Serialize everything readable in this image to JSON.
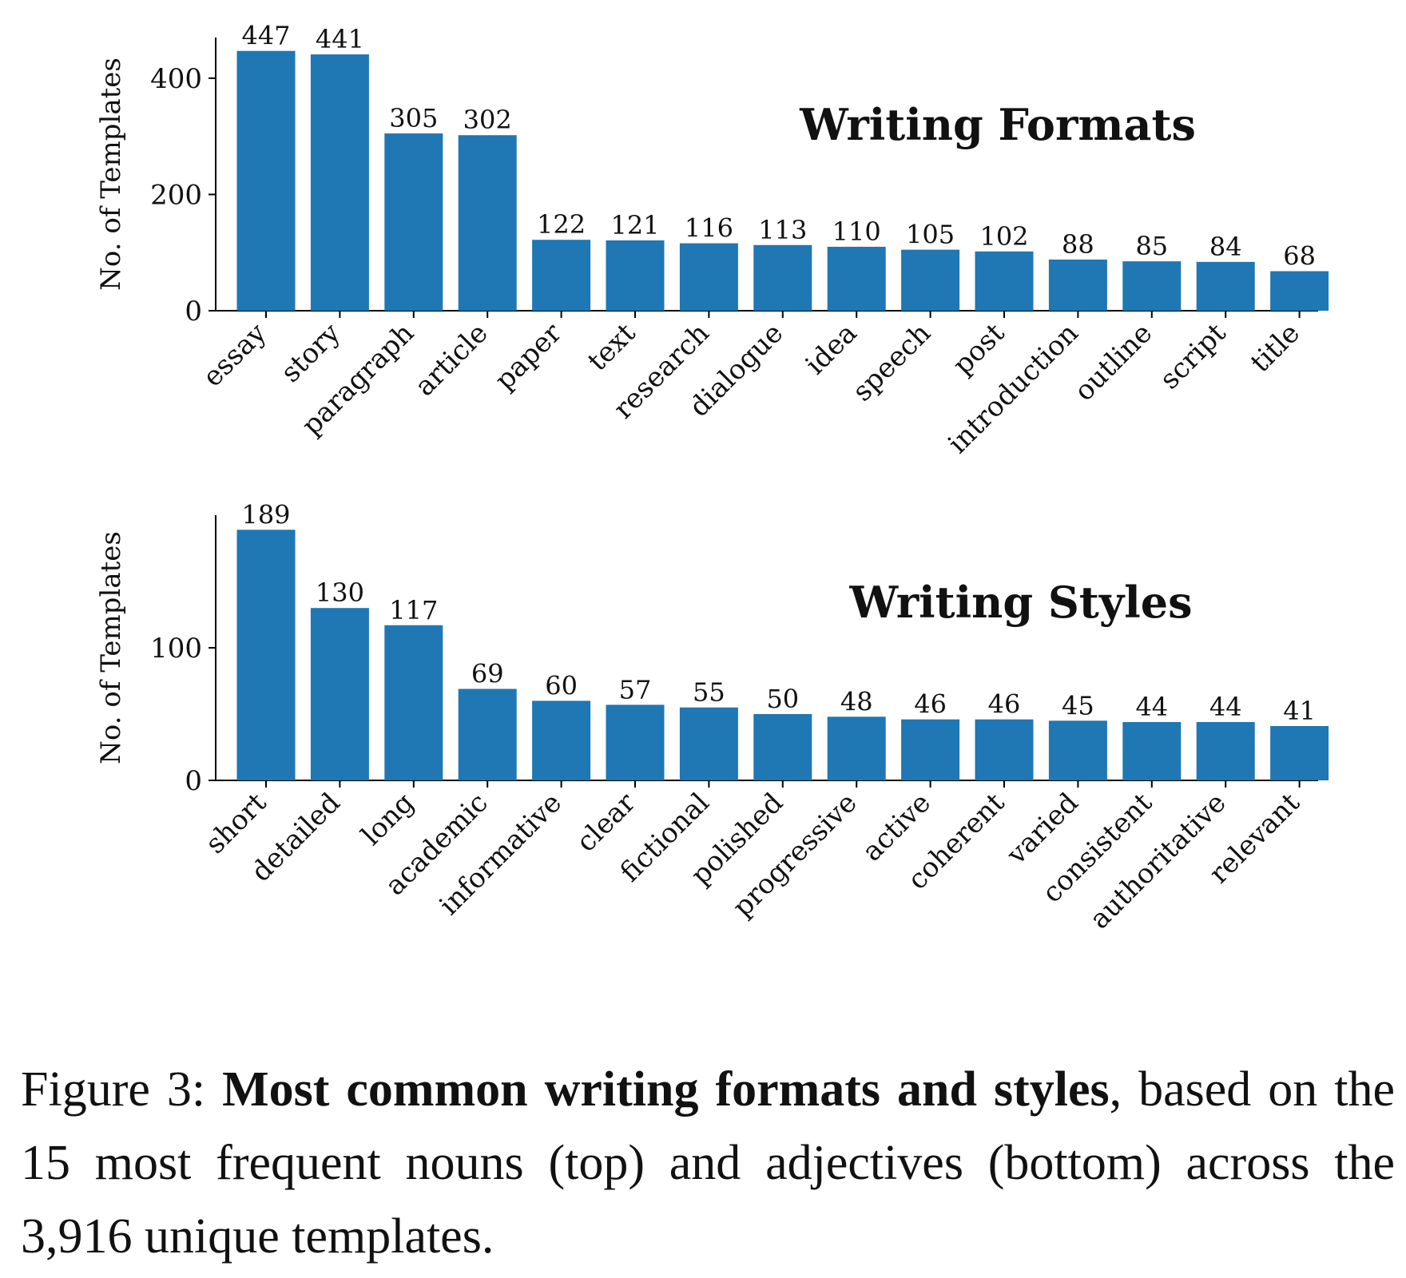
{
  "chart_data": [
    {
      "type": "bar",
      "title": "Writing Formats",
      "xlabel": "",
      "ylabel": "No. of Templates",
      "categories": [
        "essay",
        "story",
        "paragraph",
        "article",
        "paper",
        "text",
        "research",
        "dialogue",
        "idea",
        "speech",
        "post",
        "introduction",
        "outline",
        "script",
        "title"
      ],
      "values": [
        447,
        441,
        305,
        302,
        122,
        121,
        116,
        113,
        110,
        105,
        102,
        88,
        85,
        84,
        68
      ],
      "yticks": [
        0,
        200,
        400
      ],
      "ylim": [
        0,
        470
      ],
      "bar_color": "#1f77b4",
      "grid": false
    },
    {
      "type": "bar",
      "title": "Writing Styles",
      "xlabel": "",
      "ylabel": "No. of Templates",
      "categories": [
        "short",
        "detailed",
        "long",
        "academic",
        "informative",
        "clear",
        "fictional",
        "polished",
        "progressive",
        "active",
        "coherent",
        "varied",
        "consistent",
        "authoritative",
        "relevant"
      ],
      "values": [
        189,
        130,
        117,
        69,
        60,
        57,
        55,
        50,
        48,
        46,
        46,
        45,
        44,
        44,
        41
      ],
      "yticks": [
        0,
        100
      ],
      "ylim": [
        0,
        200
      ],
      "bar_color": "#1f77b4",
      "grid": false
    }
  ],
  "caption": {
    "prefix": "Figure 3: ",
    "bold": "Most common writing formats and styles",
    "rest": ", based on the 15 most frequent nouns (top) and adjectives (bottom) across the 3,916 unique templates."
  }
}
